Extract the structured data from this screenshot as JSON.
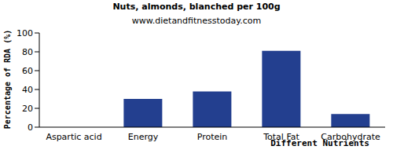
{
  "chart_data": {
    "type": "bar",
    "title": "Nuts, almonds, blanched per 100g",
    "subtitle": "www.dietandfitnesstoday.com",
    "x_label": "Different Nutrients",
    "y_label": "Percentage of RDA (%)",
    "categories": [
      "Aspartic acid",
      "Energy",
      "Protein",
      "Total Fat",
      "Carbohydrate"
    ],
    "values": [
      0,
      30,
      38,
      81,
      14
    ],
    "color": "#233f8f",
    "ylim": [
      0,
      100
    ],
    "yticks": [
      0,
      20,
      40,
      60,
      80,
      100
    ],
    "grid": false
  }
}
